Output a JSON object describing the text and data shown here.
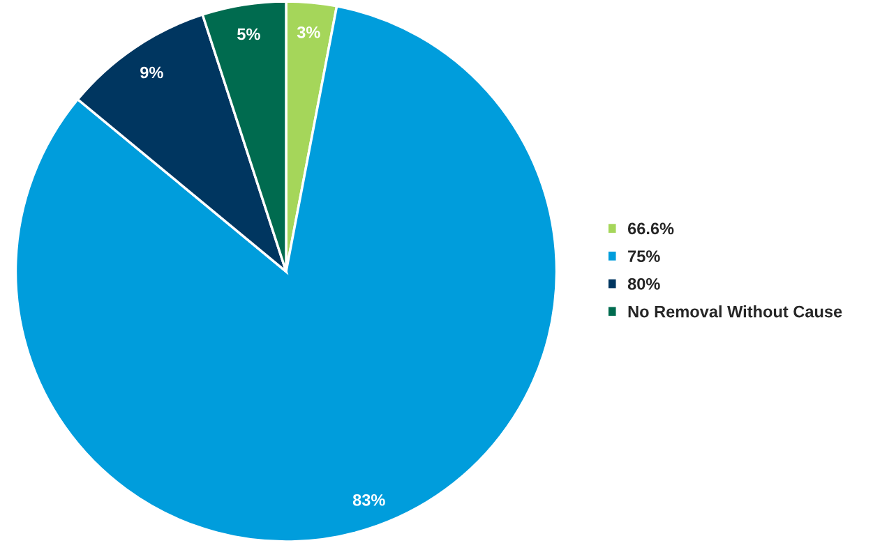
{
  "chart_data": {
    "type": "pie",
    "categories": [
      "66.6%",
      "75%",
      "80%",
      "No Removal Without Cause"
    ],
    "values": [
      3,
      83,
      9,
      5
    ],
    "colors": [
      "#a5d65a",
      "#009ddc",
      "#003660",
      "#006b4f"
    ],
    "value_labels": [
      "3%",
      "83%",
      "9%",
      "5%"
    ],
    "legend": "right"
  }
}
